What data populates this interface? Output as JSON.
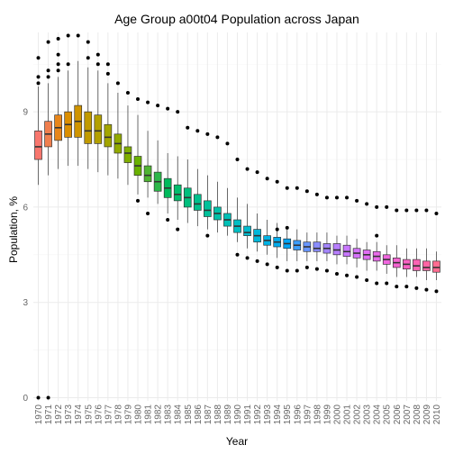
{
  "chart_data": {
    "type": "boxplot",
    "title": "Age Group a00t04 Population across Japan",
    "xlabel": "Year",
    "ylabel": "Population, %",
    "ylim": [
      -0.1,
      11.5
    ],
    "yticks": [
      0,
      3,
      6,
      9
    ],
    "grid": true,
    "legend": "none",
    "categories": [
      "1970",
      "1971",
      "1972",
      "1973",
      "1974",
      "1975",
      "1976",
      "1977",
      "1978",
      "1979",
      "1980",
      "1981",
      "1982",
      "1983",
      "1984",
      "1985",
      "1986",
      "1987",
      "1988",
      "1989",
      "1990",
      "1991",
      "1992",
      "1993",
      "1994",
      "1995",
      "1996",
      "1997",
      "1998",
      "1999",
      "2000",
      "2001",
      "2002",
      "2003",
      "2004",
      "2005",
      "2006",
      "2007",
      "2008",
      "2009",
      "2010"
    ],
    "colors": [
      "#F8766D",
      "#F07F4E",
      "#E7861B",
      "#DB8E00",
      "#CF9400",
      "#C19A00",
      "#B3A000",
      "#A3A500",
      "#92AA00",
      "#7FAE00",
      "#69B100",
      "#4FB433",
      "#2CB74A",
      "#00BA5C",
      "#00BD6C",
      "#00BF7D",
      "#00C08C",
      "#00C19A",
      "#00C1A8",
      "#00C0B6",
      "#00BEC3",
      "#00BBCE",
      "#00B7DA",
      "#00B2E4",
      "#00ACED",
      "#00A5F5",
      "#3A9DFB",
      "#6896FF",
      "#8A8DFF",
      "#A385FF",
      "#B77EFF",
      "#C877FF",
      "#D573FA",
      "#E06DF3",
      "#E96AEA",
      "#F066DF",
      "#F564D1",
      "#F962C3",
      "#FC63B4",
      "#FE65A4",
      "#FF6C91"
    ],
    "series": [
      {
        "name": "1970",
        "values": {
          "min": 6.7,
          "q1": 7.5,
          "median": 7.9,
          "q3": 8.4,
          "max": 9.8,
          "outliers": [
            0.0,
            9.9,
            10.1,
            10.7
          ]
        }
      },
      {
        "name": "1971",
        "values": {
          "min": 7.0,
          "q1": 7.9,
          "median": 8.3,
          "q3": 8.7,
          "max": 9.9,
          "outliers": [
            0.0,
            10.1,
            10.3,
            11.2
          ]
        }
      },
      {
        "name": "1972",
        "values": {
          "min": 7.2,
          "q1": 8.1,
          "median": 8.5,
          "q3": 8.9,
          "max": 10.1,
          "outliers": [
            10.3,
            10.5,
            10.8,
            11.3
          ]
        }
      },
      {
        "name": "1973",
        "values": {
          "min": 7.3,
          "q1": 8.2,
          "median": 8.6,
          "q3": 9.0,
          "max": 10.3,
          "outliers": [
            10.5,
            11.4
          ]
        }
      },
      {
        "name": "1974",
        "values": {
          "min": 7.3,
          "q1": 8.2,
          "median": 8.7,
          "q3": 9.2,
          "max": 10.6,
          "outliers": [
            11.4
          ]
        }
      },
      {
        "name": "1975",
        "values": {
          "min": 7.2,
          "q1": 8.0,
          "median": 8.4,
          "q3": 9.0,
          "max": 10.4,
          "outliers": [
            10.7,
            11.2
          ]
        }
      },
      {
        "name": "1976",
        "values": {
          "min": 7.1,
          "q1": 8.0,
          "median": 8.4,
          "q3": 8.9,
          "max": 10.3,
          "outliers": [
            10.5,
            10.8
          ]
        }
      },
      {
        "name": "1977",
        "values": {
          "min": 7.0,
          "q1": 7.9,
          "median": 8.2,
          "q3": 8.6,
          "max": 9.9,
          "outliers": [
            10.2,
            10.5
          ]
        }
      },
      {
        "name": "1978",
        "values": {
          "min": 6.9,
          "q1": 7.7,
          "median": 8.0,
          "q3": 8.3,
          "max": 9.6,
          "outliers": [
            9.9
          ]
        }
      },
      {
        "name": "1979",
        "values": {
          "min": 6.7,
          "q1": 7.4,
          "median": 7.7,
          "q3": 7.9,
          "max": 9.2,
          "outliers": [
            9.6
          ]
        }
      },
      {
        "name": "1980",
        "values": {
          "min": 6.4,
          "q1": 7.0,
          "median": 7.3,
          "q3": 7.6,
          "max": 8.9,
          "outliers": [
            6.2,
            9.4
          ]
        }
      },
      {
        "name": "1981",
        "values": {
          "min": 6.3,
          "q1": 6.8,
          "median": 7.0,
          "q3": 7.3,
          "max": 8.4,
          "outliers": [
            5.8,
            9.3
          ]
        }
      },
      {
        "name": "1982",
        "values": {
          "min": 6.1,
          "q1": 6.5,
          "median": 6.8,
          "q3": 7.1,
          "max": 8.1,
          "outliers": [
            9.2
          ]
        }
      },
      {
        "name": "1983",
        "values": {
          "min": 5.8,
          "q1": 6.3,
          "median": 6.6,
          "q3": 6.9,
          "max": 7.7,
          "outliers": [
            5.6,
            9.1
          ]
        }
      },
      {
        "name": "1984",
        "values": {
          "min": 5.6,
          "q1": 6.2,
          "median": 6.4,
          "q3": 6.7,
          "max": 7.6,
          "outliers": [
            5.3,
            9.0
          ]
        }
      },
      {
        "name": "1985",
        "values": {
          "min": 5.5,
          "q1": 6.0,
          "median": 6.3,
          "q3": 6.6,
          "max": 7.5,
          "outliers": [
            8.5
          ]
        }
      },
      {
        "name": "1986",
        "values": {
          "min": 5.4,
          "q1": 5.9,
          "median": 6.1,
          "q3": 6.4,
          "max": 7.2,
          "outliers": [
            8.4
          ]
        }
      },
      {
        "name": "1987",
        "values": {
          "min": 5.3,
          "q1": 5.7,
          "median": 5.9,
          "q3": 6.2,
          "max": 7.0,
          "outliers": [
            5.1,
            8.3
          ]
        }
      },
      {
        "name": "1988",
        "values": {
          "min": 5.2,
          "q1": 5.6,
          "median": 5.8,
          "q3": 6.0,
          "max": 6.8,
          "outliers": [
            8.2
          ]
        }
      },
      {
        "name": "1989",
        "values": {
          "min": 5.1,
          "q1": 5.4,
          "median": 5.6,
          "q3": 5.8,
          "max": 6.6,
          "outliers": [
            8.0
          ]
        }
      },
      {
        "name": "1990",
        "values": {
          "min": 4.9,
          "q1": 5.2,
          "median": 5.4,
          "q3": 5.6,
          "max": 6.3,
          "outliers": [
            4.5,
            7.5
          ]
        }
      },
      {
        "name": "1991",
        "values": {
          "min": 4.7,
          "q1": 5.1,
          "median": 5.2,
          "q3": 5.4,
          "max": 6.1,
          "outliers": [
            4.4,
            7.2
          ]
        }
      },
      {
        "name": "1992",
        "values": {
          "min": 4.6,
          "q1": 4.9,
          "median": 5.1,
          "q3": 5.3,
          "max": 5.8,
          "outliers": [
            4.3,
            7.1
          ]
        }
      },
      {
        "name": "1993",
        "values": {
          "min": 4.5,
          "q1": 4.8,
          "median": 4.95,
          "q3": 5.1,
          "max": 5.6,
          "outliers": [
            4.2,
            6.9
          ]
        }
      },
      {
        "name": "1994",
        "values": {
          "min": 4.4,
          "q1": 4.75,
          "median": 4.9,
          "q3": 5.05,
          "max": 5.5,
          "outliers": [
            4.1,
            5.3,
            6.8
          ]
        }
      },
      {
        "name": "1995",
        "values": {
          "min": 4.3,
          "q1": 4.7,
          "median": 4.85,
          "q3": 5.0,
          "max": 5.3,
          "outliers": [
            4.0,
            5.35,
            6.6
          ]
        }
      },
      {
        "name": "1996",
        "values": {
          "min": 4.3,
          "q1": 4.65,
          "median": 4.8,
          "q3": 4.95,
          "max": 5.3,
          "outliers": [
            4.0,
            6.6
          ]
        }
      },
      {
        "name": "1997",
        "values": {
          "min": 4.3,
          "q1": 4.6,
          "median": 4.75,
          "q3": 4.9,
          "max": 5.2,
          "outliers": [
            4.1,
            6.5
          ]
        }
      },
      {
        "name": "1998",
        "values": {
          "min": 4.3,
          "q1": 4.6,
          "median": 4.7,
          "q3": 4.9,
          "max": 5.2,
          "outliers": [
            4.05,
            6.4
          ]
        }
      },
      {
        "name": "1999",
        "values": {
          "min": 4.3,
          "q1": 4.55,
          "median": 4.7,
          "q3": 4.85,
          "max": 5.2,
          "outliers": [
            4.0,
            6.3
          ]
        }
      },
      {
        "name": "2000",
        "values": {
          "min": 4.2,
          "q1": 4.5,
          "median": 4.65,
          "q3": 4.85,
          "max": 5.1,
          "outliers": [
            3.9,
            6.3
          ]
        }
      },
      {
        "name": "2001",
        "values": {
          "min": 4.2,
          "q1": 4.45,
          "median": 4.6,
          "q3": 4.8,
          "max": 5.1,
          "outliers": [
            3.85,
            6.3
          ]
        }
      },
      {
        "name": "2002",
        "values": {
          "min": 4.1,
          "q1": 4.4,
          "median": 4.55,
          "q3": 4.7,
          "max": 5.0,
          "outliers": [
            3.8,
            6.2
          ]
        }
      },
      {
        "name": "2003",
        "values": {
          "min": 4.0,
          "q1": 4.35,
          "median": 4.5,
          "q3": 4.65,
          "max": 4.9,
          "outliers": [
            3.7,
            6.1
          ]
        }
      },
      {
        "name": "2004",
        "values": {
          "min": 4.0,
          "q1": 4.3,
          "median": 4.45,
          "q3": 4.6,
          "max": 4.9,
          "outliers": [
            3.6,
            5.1,
            6.0
          ]
        }
      },
      {
        "name": "2005",
        "values": {
          "min": 3.9,
          "q1": 4.2,
          "median": 4.35,
          "q3": 4.5,
          "max": 4.8,
          "outliers": [
            3.6,
            6.0
          ]
        }
      },
      {
        "name": "2006",
        "values": {
          "min": 3.8,
          "q1": 4.1,
          "median": 4.25,
          "q3": 4.4,
          "max": 4.8,
          "outliers": [
            3.5,
            5.9
          ]
        }
      },
      {
        "name": "2007",
        "values": {
          "min": 3.8,
          "q1": 4.05,
          "median": 4.2,
          "q3": 4.35,
          "max": 4.7,
          "outliers": [
            3.5,
            5.9
          ]
        }
      },
      {
        "name": "2008",
        "values": {
          "min": 3.8,
          "q1": 4.0,
          "median": 4.15,
          "q3": 4.35,
          "max": 4.7,
          "outliers": [
            3.45,
            5.9
          ]
        }
      },
      {
        "name": "2009",
        "values": {
          "min": 3.7,
          "q1": 4.0,
          "median": 4.1,
          "q3": 4.3,
          "max": 4.7,
          "outliers": [
            3.4,
            5.9
          ]
        }
      },
      {
        "name": "2010",
        "values": {
          "min": 3.7,
          "q1": 3.95,
          "median": 4.1,
          "q3": 4.3,
          "max": 4.6,
          "outliers": [
            3.35,
            5.8
          ]
        }
      }
    ]
  }
}
